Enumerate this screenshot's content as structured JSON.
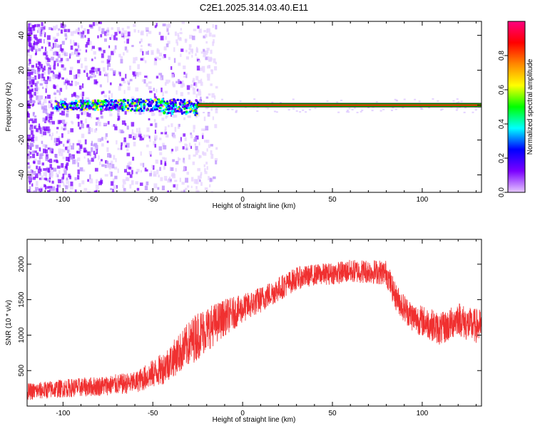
{
  "title": "C2E1.2025.314.03.40.E11",
  "chart_data": [
    {
      "type": "heatmap",
      "xlabel": "Height of straight line (km)",
      "ylabel": "Frequency (Hz)",
      "xlim": [
        -120,
        133
      ],
      "ylim": [
        -50,
        48
      ],
      "xticks": [
        -100,
        -50,
        0,
        50,
        100
      ],
      "yticks": [
        -40,
        -20,
        0,
        20,
        40
      ],
      "colorbar": {
        "label": "Normalized spectral amplitude",
        "range": [
          0,
          1
        ],
        "ticks": [
          0.0,
          0.2,
          0.4,
          0.6,
          0.8
        ],
        "tick_labels": [
          "0.0",
          "0.2",
          "0.4",
          "0.6",
          "0.8"
        ],
        "colors": [
          "#e6c8ff",
          "#7b00ff",
          "#0000ff",
          "#00ffff",
          "#00ff00",
          "#ffff00",
          "#ff8800",
          "#ff0000",
          "#ff0080"
        ]
      },
      "carrier_band": {
        "frequency": 0,
        "start_height": -25,
        "end_height": 133,
        "edge_color": "#000000",
        "core_color": "#ff0000"
      },
      "noise_region": {
        "from_height": -120,
        "to_height": -25,
        "color": "#7b00ff"
      }
    },
    {
      "type": "line",
      "xlabel": "Height of straight line (km)",
      "ylabel": "SNR (10 * v/v)",
      "xlim": [
        -120,
        133
      ],
      "ylim": [
        0,
        2350
      ],
      "xticks": [
        -100,
        -50,
        0,
        50,
        100
      ],
      "yticks": [
        500,
        1000,
        1500,
        2000
      ],
      "series": [
        {
          "color": "#f03030",
          "envelope": {
            "x": [
              -120,
              -100,
              -80,
              -60,
              -45,
              -35,
              -25,
              -10,
              0,
              10,
              20,
              30,
              40,
              50,
              60,
              70,
              80,
              85,
              90,
              95,
              100,
              105,
              110,
              115,
              120,
              125,
              133
            ],
            "y": [
              200,
              250,
              280,
              330,
              520,
              750,
              1000,
              1250,
              1370,
              1500,
              1650,
              1800,
              1850,
              1870,
              1900,
              1900,
              1880,
              1550,
              1380,
              1250,
              1200,
              1150,
              1080,
              1140,
              1250,
              1150,
              1120
            ]
          },
          "noise_amplitude": {
            "x": [
              -120,
              -60,
              -40,
              -25,
              0,
              40,
              80,
              100,
              133
            ],
            "y": [
              120,
              150,
              250,
              350,
              200,
              150,
              180,
              220,
              250
            ]
          }
        }
      ]
    }
  ]
}
